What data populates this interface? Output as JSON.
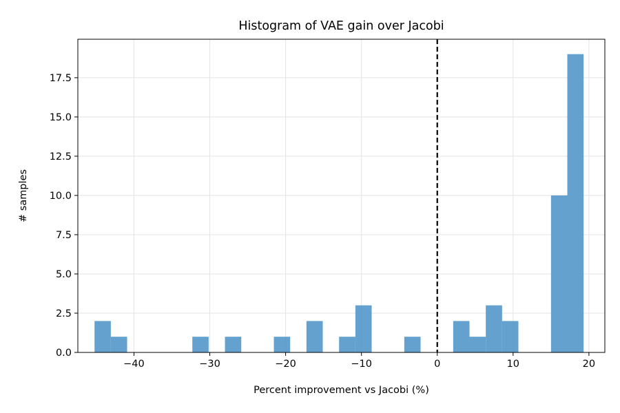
{
  "chart_data": {
    "type": "bar",
    "title": "Histogram of VAE gain over Jacobi",
    "xlabel": "Percent improvement vs Jacobi (%)",
    "ylabel": "# samples",
    "xlim": [
      -47.4,
      22.1
    ],
    "ylim": [
      0,
      19.95
    ],
    "xticks": [
      -40,
      -30,
      -20,
      -10,
      0,
      10,
      20
    ],
    "xtick_labels": [
      "−40",
      "−30",
      "−20",
      "−10",
      "0",
      "10",
      "20"
    ],
    "yticks": [
      0,
      2.5,
      5,
      7.5,
      10,
      12.5,
      15,
      17.5
    ],
    "ytick_labels": [
      "0.0",
      "2.5",
      "5.0",
      "7.5",
      "10.0",
      "12.5",
      "15.0",
      "17.5"
    ],
    "grid": true,
    "bar_color": "#4f94c8",
    "bar_opacity": 0.88,
    "bin_width": 2.15,
    "bin_edges": [
      -45.2,
      -43.05,
      -40.9,
      -38.75,
      -36.6,
      -34.45,
      -32.3,
      -30.15,
      -28.0,
      -25.85,
      -23.7,
      -21.55,
      -19.4,
      -17.25,
      -15.1,
      -12.95,
      -10.8,
      -8.65,
      -6.5,
      -4.35,
      -2.2,
      -0.05,
      2.1,
      4.25,
      6.4,
      8.55,
      10.7,
      12.85,
      15.0,
      17.15,
      19.3
    ],
    "counts": [
      2,
      1,
      0,
      0,
      0,
      0,
      1,
      0,
      1,
      0,
      0,
      1,
      0,
      2,
      0,
      1,
      3,
      0,
      0,
      1,
      0,
      0,
      2,
      1,
      3,
      2,
      0,
      0,
      10,
      19
    ],
    "reference_line": {
      "x": 0,
      "style": "dashed",
      "color": "#000000"
    }
  }
}
